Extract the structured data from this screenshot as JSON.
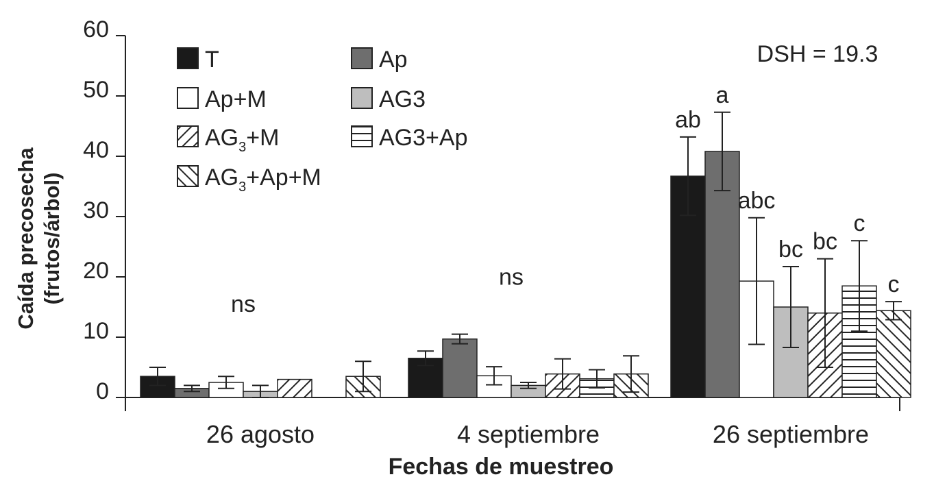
{
  "chart_data": {
    "type": "bar",
    "title": "",
    "annotation": "DSH = 19.3",
    "ylabel_lines": [
      "Caída precosecha",
      "(frutos/árbol)"
    ],
    "xlabel": "Fechas de muestreo",
    "ylim": [
      0,
      60
    ],
    "yticks": [
      "0",
      "10",
      "20",
      "30",
      "40",
      "50",
      "60"
    ],
    "categories": [
      "26 agosto",
      "4 septiembre",
      "26 septiembre"
    ],
    "legend_position": "top-left",
    "series": [
      {
        "name": "T",
        "base": "T",
        "sub": "",
        "tail": "",
        "pattern": "solid-black",
        "values": [
          3.5,
          6.5,
          36.7
        ],
        "errors": [
          1.5,
          1.2,
          6.5
        ]
      },
      {
        "name": "Ap",
        "base": "Ap",
        "sub": "",
        "tail": "",
        "pattern": "solid-darkgray",
        "values": [
          1.5,
          9.7,
          40.8
        ],
        "errors": [
          0.5,
          0.8,
          6.5
        ]
      },
      {
        "name": "Ap+M",
        "base": "Ap+M",
        "sub": "",
        "tail": "",
        "pattern": "white",
        "values": [
          2.5,
          3.6,
          19.3
        ],
        "errors": [
          1.0,
          1.5,
          10.5
        ]
      },
      {
        "name": "AG3",
        "base": "AG3",
        "sub": "",
        "tail": "",
        "pattern": "solid-lightgray",
        "values": [
          1.0,
          2.0,
          15.0
        ],
        "errors": [
          1.0,
          0.5,
          6.7
        ]
      },
      {
        "name": "AG3+M",
        "base": "AG",
        "sub": "3",
        "tail": "+M",
        "pattern": "diag-right",
        "values": [
          3.0,
          3.9,
          14.0
        ],
        "errors": [
          0.0,
          2.5,
          9.0
        ]
      },
      {
        "name": "AG3+Ap",
        "base": "AG3+Ap",
        "sub": "",
        "tail": "",
        "pattern": "horizontal",
        "values": [
          0.0,
          3.1,
          18.5
        ],
        "errors": [
          0.0,
          1.5,
          7.5
        ]
      },
      {
        "name": "AG3+Ap+M",
        "base": "AG",
        "sub": "3",
        "tail": "+Ap+M",
        "pattern": "diag-left",
        "values": [
          3.5,
          3.9,
          14.4
        ],
        "errors": [
          2.5,
          3.0,
          1.5
        ]
      }
    ],
    "significance": [
      {
        "category": "26 agosto",
        "labels": [
          "ns"
        ]
      },
      {
        "category": "4 septiembre",
        "labels": [
          "ns"
        ]
      },
      {
        "category": "26 septiembre",
        "labels": [
          "ab",
          "a",
          "abc",
          "bc",
          "bc",
          "c",
          "c"
        ]
      }
    ],
    "colors": {
      "solid-black": "#1a1a1a",
      "solid-darkgray": "#6e6e6e",
      "solid-lightgray": "#bebebe",
      "white": "#ffffff",
      "stroke": "#222222"
    }
  }
}
